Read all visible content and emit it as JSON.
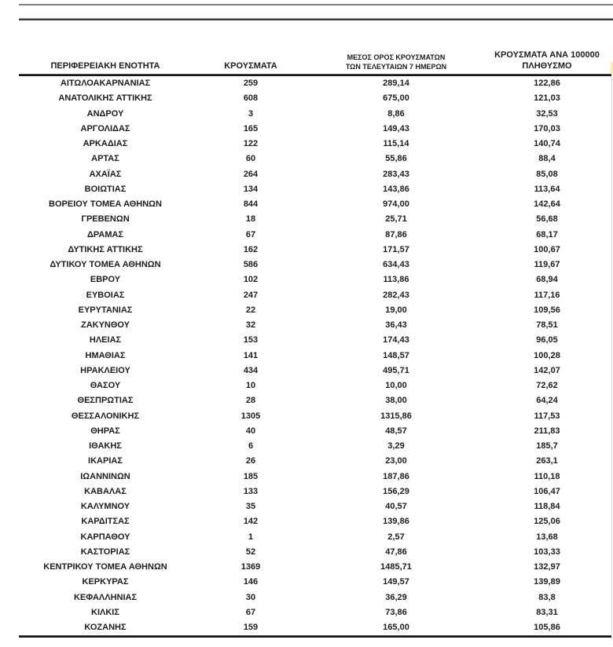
{
  "colors": {
    "text": "#1d1d1d",
    "rule_dark": "#141414",
    "rule_gray": "#7d7d7d",
    "highlight_fragment": "#ffef9c"
  },
  "table": {
    "headers": [
      {
        "label": "ΠΕΡΙΦΕΡΕΙΑΚΗ ΕΝΟΤΗΤΑ"
      },
      {
        "label": "ΚΡΟΥΣΜΑΤΑ"
      },
      {
        "label": "ΜΕΣΟΣ ΟΡΟΣ ΚΡΟΥΣΜΑΤΩΝ\nΤΩΝ ΤΕΛΕΥΤΑΙΩΝ 7 ΗΜΕΡΩΝ"
      },
      {
        "label": "ΚΡΟΥΣΜΑΤΑ ΑΝΑ 100000\nΠΛΗΘΥΣΜΟ"
      }
    ],
    "rows": [
      [
        "ΑΙΤΩΛΟΑΚΑΡΝΑΝΙΑΣ",
        "259",
        "289,14",
        "122,86"
      ],
      [
        "ΑΝΑΤΟΛΙΚΗΣ ΑΤΤΙΚΗΣ",
        "608",
        "675,00",
        "121,03"
      ],
      [
        "ΑΝΔΡΟΥ",
        "3",
        "8,86",
        "32,53"
      ],
      [
        "ΑΡΓΟΛΙΔΑΣ",
        "165",
        "149,43",
        "170,03"
      ],
      [
        "ΑΡΚΑΔΙΑΣ",
        "122",
        "115,14",
        "140,74"
      ],
      [
        "ΑΡΤΑΣ",
        "60",
        "55,86",
        "88,4"
      ],
      [
        "ΑΧΑΪΑΣ",
        "264",
        "283,43",
        "85,08"
      ],
      [
        "ΒΟΙΩΤΙΑΣ",
        "134",
        "143,86",
        "113,64"
      ],
      [
        "ΒΟΡΕΙΟΥ ΤΟΜΕΑ ΑΘΗΝΩΝ",
        "844",
        "974,00",
        "142,64"
      ],
      [
        "ΓΡΕΒΕΝΩΝ",
        "18",
        "25,71",
        "56,68"
      ],
      [
        "ΔΡΑΜΑΣ",
        "67",
        "87,86",
        "68,17"
      ],
      [
        "ΔΥΤΙΚΗΣ ΑΤΤΙΚΗΣ",
        "162",
        "171,57",
        "100,67"
      ],
      [
        "ΔΥΤΙΚΟΥ ΤΟΜΕΑ ΑΘΗΝΩΝ",
        "586",
        "634,43",
        "119,67"
      ],
      [
        "ΕΒΡΟΥ",
        "102",
        "113,86",
        "68,94"
      ],
      [
        "ΕΥΒΟΙΑΣ",
        "247",
        "282,43",
        "117,16"
      ],
      [
        "ΕΥΡΥΤΑΝΙΑΣ",
        "22",
        "19,00",
        "109,56"
      ],
      [
        "ΖΑΚΥΝΘΟΥ",
        "32",
        "36,43",
        "78,51"
      ],
      [
        "ΗΛΕΙΑΣ",
        "153",
        "174,43",
        "96,05"
      ],
      [
        "ΗΜΑΘΙΑΣ",
        "141",
        "148,57",
        "100,28"
      ],
      [
        "ΗΡΑΚΛΕΙΟΥ",
        "434",
        "495,71",
        "142,07"
      ],
      [
        "ΘΑΣΟΥ",
        "10",
        "10,00",
        "72,62"
      ],
      [
        "ΘΕΣΠΡΩΤΙΑΣ",
        "28",
        "38,00",
        "64,24"
      ],
      [
        "ΘΕΣΣΑΛΟΝΙΚΗΣ",
        "1305",
        "1315,86",
        "117,53"
      ],
      [
        "ΘΗΡΑΣ",
        "40",
        "48,57",
        "211,83"
      ],
      [
        "ΙΘΑΚΗΣ",
        "6",
        "3,29",
        "185,7"
      ],
      [
        "ΙΚΑΡΙΑΣ",
        "26",
        "23,00",
        "263,1"
      ],
      [
        "ΙΩΑΝΝΙΝΩΝ",
        "185",
        "187,86",
        "110,18"
      ],
      [
        "ΚΑΒΑΛΑΣ",
        "133",
        "156,29",
        "106,47"
      ],
      [
        "ΚΑΛΥΜΝΟΥ",
        "35",
        "40,57",
        "118,84"
      ],
      [
        "ΚΑΡΔΙΤΣΑΣ",
        "142",
        "139,86",
        "125,06"
      ],
      [
        "ΚΑΡΠΑΘΟΥ",
        "1",
        "2,57",
        "13,68"
      ],
      [
        "ΚΑΣΤΟΡΙΑΣ",
        "52",
        "47,86",
        "103,33"
      ],
      [
        "ΚΕΝΤΡΙΚΟΥ ΤΟΜΕΑ ΑΘΗΝΩΝ",
        "1369",
        "1485,71",
        "132,97"
      ],
      [
        "ΚΕΡΚΥΡΑΣ",
        "146",
        "149,57",
        "139,89"
      ],
      [
        "ΚΕΦΑΛΛΗΝΙΑΣ",
        "30",
        "36,29",
        "83,8"
      ],
      [
        "ΚΙΛΚΙΣ",
        "67",
        "73,86",
        "83,31"
      ],
      [
        "ΚΟΖΑΝΗΣ",
        "159",
        "165,00",
        "105,86"
      ]
    ]
  }
}
